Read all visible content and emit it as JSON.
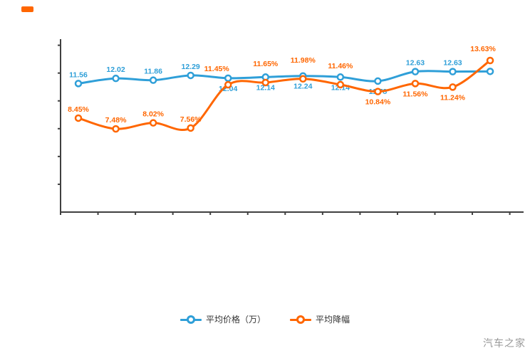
{
  "page": {
    "background": "#ffffff",
    "axis_color": "#404040"
  },
  "logo": {
    "mark_color": "#ff6600"
  },
  "chart_data": {
    "type": "line",
    "title": "",
    "xlabel": "",
    "ylabel": "",
    "x": [
      1,
      2,
      3,
      4,
      5,
      6,
      7,
      8,
      9,
      10,
      11,
      12
    ],
    "x_tick_labels_visible": false,
    "y_tick_labels_visible": false,
    "ylim": [
      0,
      15.55
    ],
    "y_ticks": [
      2.5,
      5,
      7.5,
      10,
      12.5,
      15
    ],
    "grid": false,
    "legend_position": "bottom",
    "series": [
      {
        "name": "平均价格（万）",
        "color": "#2f9fd8",
        "values": [
          11.56,
          12.02,
          11.86,
          12.29,
          12.04,
          12.14,
          12.24,
          12.14,
          11.78,
          12.63,
          12.63,
          12.65
        ],
        "labels": [
          "11.56",
          "12.02",
          "11.86",
          "12.29",
          "12.04",
          "12.14",
          "12.24",
          "12.14",
          "11.78",
          "12.63",
          "12.63",
          ""
        ],
        "label_pos": [
          "above",
          "above",
          "above",
          "above",
          "below",
          "below",
          "below",
          "below",
          "below",
          "above",
          "above",
          "none"
        ]
      },
      {
        "name": "平均降幅",
        "color": "#ff6600",
        "values": [
          8.45,
          7.48,
          8.02,
          7.56,
          11.45,
          11.65,
          11.98,
          11.46,
          10.84,
          11.56,
          11.24,
          13.63
        ],
        "labels": [
          "8.45%",
          "7.48%",
          "8.02%",
          "7.56%",
          "11.45%",
          "11.65%",
          "11.98%",
          "11.46%",
          "10.84%",
          "11.56%",
          "11.24%",
          "13.63%"
        ],
        "label_pos": [
          "above",
          "above",
          "above",
          "above",
          "above",
          "above",
          "above",
          "above",
          "below",
          "below",
          "below",
          "above"
        ],
        "label_offsets": {
          "4": [
            -16,
            -10
          ],
          "5": [
            0,
            -14
          ],
          "6": [
            0,
            -14
          ],
          "7": [
            0,
            -14
          ],
          "11": [
            -10,
            -4
          ]
        }
      }
    ]
  },
  "legend": {
    "items": [
      {
        "label": "平均价格（万）",
        "color": "#2f9fd8"
      },
      {
        "label": "平均降幅",
        "color": "#ff6600"
      }
    ]
  },
  "watermark": {
    "text": "汽车之家"
  }
}
